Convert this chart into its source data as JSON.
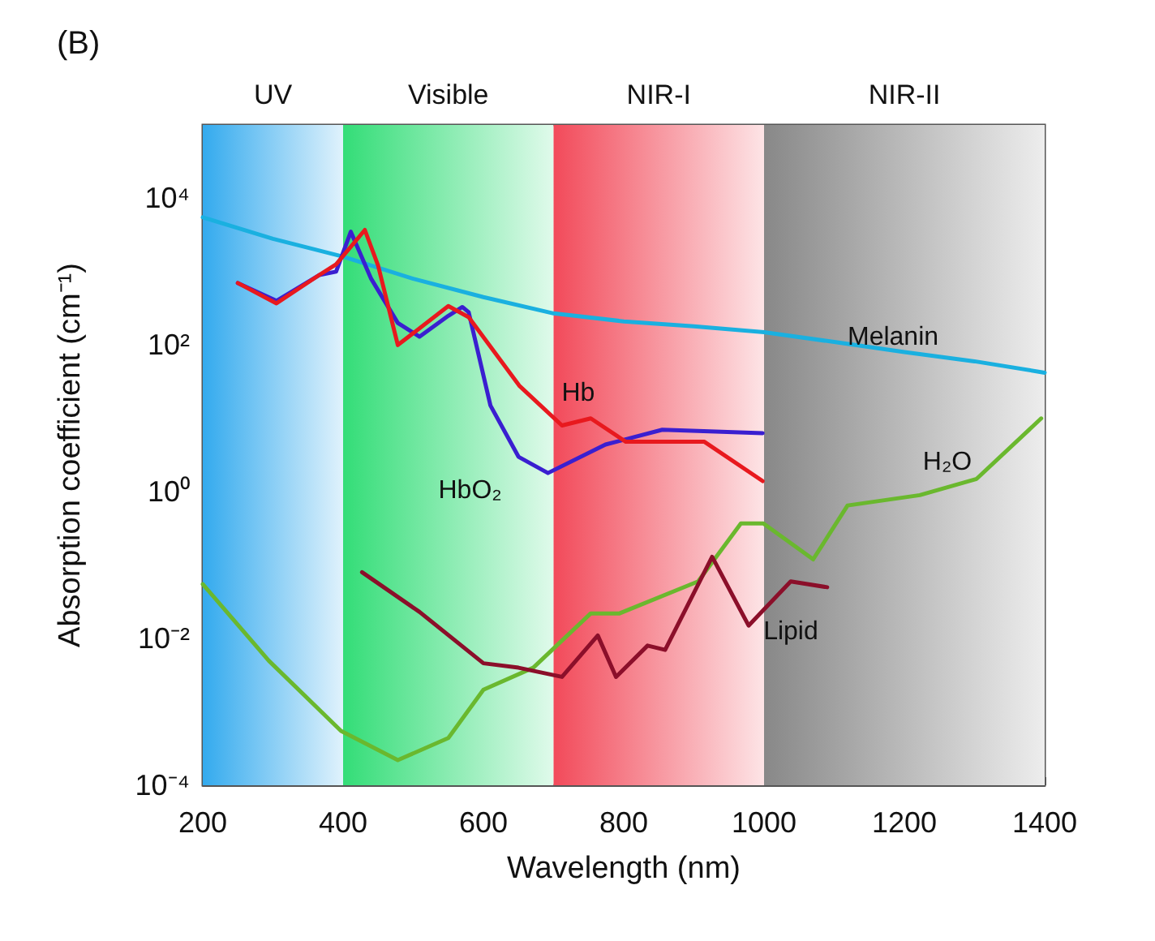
{
  "chart_data": {
    "type": "line",
    "title": "(B)",
    "xlabel": "Wavelength (nm)",
    "ylabel": "Absorption coefficient (cm⁻¹)",
    "log": "y",
    "xlim": [
      200,
      1400
    ],
    "xticks": [
      200,
      400,
      600,
      800,
      1000,
      1200,
      1400
    ],
    "ylim": [
      0.0001,
      100000
    ],
    "yticks": [
      {
        "value": 0.0001,
        "label": "10⁻⁴"
      },
      {
        "value": 0.01,
        "label": "10⁻²"
      },
      {
        "value": 1,
        "label": "10⁰"
      },
      {
        "value": 100,
        "label": "10²"
      },
      {
        "value": 10000,
        "label": "10⁴"
      }
    ],
    "grid": false,
    "legend": false,
    "marker": "none",
    "line_style": "solid",
    "bands": [
      {
        "axis": "x",
        "from": 200,
        "to": 400,
        "label": "UV",
        "color": "#33aaee"
      },
      {
        "axis": "x",
        "from": 400,
        "to": 700,
        "label": "Visible",
        "color": "#33dd77"
      },
      {
        "axis": "x",
        "from": 700,
        "to": 1000,
        "label": "NIR-I",
        "color": "#f24a5a"
      },
      {
        "axis": "x",
        "from": 1000,
        "to": 1400,
        "label": "NIR-II",
        "color": "#888888"
      }
    ],
    "series": [
      {
        "name": "Melanin",
        "color": "#1ab0e0",
        "x": [
          200,
          300,
          400,
          500,
          600,
          700,
          800,
          900,
          1000,
          1100,
          1200,
          1300,
          1400
        ],
        "values": [
          5500,
          2800,
          1600,
          800,
          450,
          270,
          210,
          180,
          150,
          110,
          80,
          60,
          42
        ]
      },
      {
        "name": "HbO₂",
        "color": "#3a1fd0",
        "x": [
          250,
          305,
          366,
          390,
          411,
          440,
          478,
          509,
          550,
          570,
          579,
          610,
          650,
          692,
          774,
          855,
          998
        ],
        "values": [
          700,
          400,
          900,
          1000,
          3500,
          800,
          200,
          130,
          250,
          330,
          280,
          15,
          3,
          1.8,
          4.4,
          7,
          6.3
        ]
      },
      {
        "name": "Hb",
        "color": "#e8191e",
        "x": [
          250,
          305,
          366,
          390,
          431,
          450,
          478,
          550,
          579,
          651,
          712,
          753,
          803,
          915,
          998
        ],
        "values": [
          700,
          370,
          900,
          1260,
          3700,
          1200,
          100,
          340,
          240,
          28,
          8,
          10,
          4.8,
          4.8,
          1.4
        ]
      },
      {
        "name": "H₂O",
        "color": "#6ab82e",
        "x": [
          200,
          294,
          397,
          478,
          550,
          600,
          671,
          753,
          794,
          906,
          967,
          999,
          1070,
          1119,
          1222,
          1303,
          1395
        ],
        "values": [
          0.055,
          0.005,
          0.00055,
          0.00022,
          0.00044,
          0.002,
          0.004,
          0.022,
          0.022,
          0.06,
          0.37,
          0.37,
          0.12,
          0.65,
          0.9,
          1.5,
          10
        ]
      },
      {
        "name": "Lipid",
        "color": "#8b0f2a",
        "x": [
          427,
          509,
          600,
          650,
          712,
          763,
          789,
          834,
          859,
          926,
          978,
          1038,
          1090
        ],
        "values": [
          0.08,
          0.023,
          0.0046,
          0.004,
          0.003,
          0.011,
          0.003,
          0.008,
          0.007,
          0.13,
          0.015,
          0.06,
          0.05
        ]
      }
    ]
  }
}
